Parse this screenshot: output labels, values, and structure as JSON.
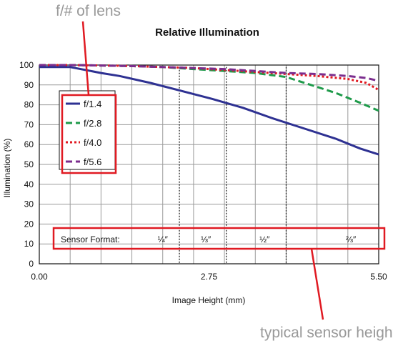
{
  "annotations": {
    "lens_callout": "f/# of lens",
    "sensor_callout": "typical sensor heights",
    "sensor_format_label": "Sensor Format:"
  },
  "colors": {
    "callout_red": "#e01a22",
    "callout_text": "#999999",
    "grid": "#9a9a9a"
  },
  "chart_data": {
    "type": "line",
    "title": "Relative Illumination",
    "xlabel": "Image Height (mm)",
    "ylabel": "Illumination (%)",
    "xlim": [
      0,
      5.5
    ],
    "ylim": [
      0,
      100
    ],
    "x_tick_labels": [
      {
        "value": 0,
        "label": "0.00"
      },
      {
        "value": 2.75,
        "label": "2.75"
      },
      {
        "value": 5.5,
        "label": "5.50"
      }
    ],
    "y_ticks": [
      0,
      10,
      20,
      30,
      40,
      50,
      60,
      70,
      80,
      90,
      100
    ],
    "grid": true,
    "legend_position": "upper-left",
    "series": [
      {
        "name": "f/1.4",
        "color": "#2e3192",
        "style": "solid",
        "x": [
          0,
          0.5,
          1.0,
          1.3,
          1.8,
          2.3,
          2.8,
          3.3,
          3.8,
          4.3,
          4.8,
          5.2,
          5.5
        ],
        "y": [
          99,
          99,
          96,
          94.5,
          91,
          87,
          83,
          78.5,
          73,
          68,
          63,
          58,
          55
        ]
      },
      {
        "name": "f/2.8",
        "color": "#1e9a4a",
        "style": "dashed",
        "x": [
          0,
          0.5,
          1.0,
          1.5,
          2.0,
          2.5,
          3.0,
          3.5,
          4.0,
          4.4,
          4.8,
          5.2,
          5.5
        ],
        "y": [
          100,
          100,
          99.8,
          99.5,
          99,
          98,
          97,
          96,
          94,
          90,
          86,
          81,
          77
        ]
      },
      {
        "name": "f/4.0",
        "color": "#e01a22",
        "style": "dotted",
        "x": [
          0,
          0.5,
          1.0,
          1.5,
          2.0,
          2.5,
          3.0,
          3.5,
          4.0,
          4.5,
          5.0,
          5.3,
          5.5
        ],
        "y": [
          100,
          100,
          99.8,
          99.5,
          99,
          98.5,
          97.5,
          96.5,
          95.5,
          94.5,
          93,
          91,
          87.5
        ]
      },
      {
        "name": "f/5.6",
        "color": "#7b2d8e",
        "style": "dashed",
        "x": [
          0,
          0.5,
          1.0,
          1.5,
          2.0,
          2.5,
          3.0,
          3.5,
          4.0,
          4.5,
          5.0,
          5.3,
          5.5
        ],
        "y": [
          100,
          100,
          99.8,
          99.5,
          99,
          98.5,
          98,
          97,
          96,
          95.5,
          94.5,
          93.5,
          92
        ]
      }
    ],
    "sensor_formats": [
      {
        "label": "¼″",
        "x_at": 2.27,
        "label_x": 2.0
      },
      {
        "label": "⅓″",
        "x_at": 3.03,
        "label_x": 2.7
      },
      {
        "label": "½″",
        "x_at": 4.0,
        "label_x": 3.65
      },
      {
        "label": "⅔″",
        "x_at": 5.5,
        "label_x": 5.05
      }
    ]
  }
}
